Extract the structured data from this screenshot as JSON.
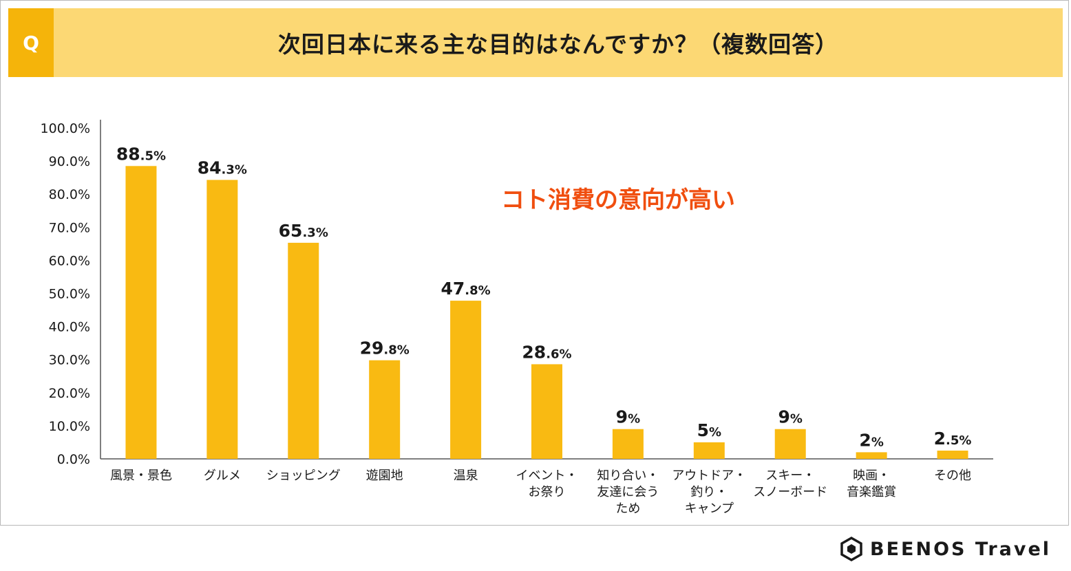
{
  "header": {
    "q_label": "Q",
    "title": "次回日本に来る主な目的はなんですか？（複数回答）"
  },
  "callout": "コト消費の意向が高い",
  "brand": {
    "name": "BEENOS Travel",
    "icon": "hexagon-logo-icon"
  },
  "colors": {
    "bar": "#f9ba12",
    "header_bg": "#fcd874",
    "q_bg": "#f5b40a",
    "callout": "#f04e0f",
    "axis": "#555555"
  },
  "chart_data": {
    "type": "bar",
    "title": "次回日本に来る主な目的はなんですか？（複数回答）",
    "xlabel": "",
    "ylabel": "",
    "ylim": [
      0,
      100
    ],
    "y_ticks": [
      "0.0%",
      "10.0%",
      "20.0%",
      "30.0%",
      "40.0%",
      "50.0%",
      "60.0%",
      "70.0%",
      "80.0%",
      "90.0%",
      "100.0%"
    ],
    "categories": [
      [
        "風景・景色"
      ],
      [
        "グルメ"
      ],
      [
        "ショッピング"
      ],
      [
        "遊園地"
      ],
      [
        "温泉"
      ],
      [
        "イベント・",
        "お祭り"
      ],
      [
        "知り合い・",
        "友達に会う",
        "ため"
      ],
      [
        "アウトドア・",
        "釣り・",
        "キャンプ"
      ],
      [
        "スキー・",
        "スノーボード"
      ],
      [
        "映画・",
        "音楽鑑賞"
      ],
      [
        "その他"
      ]
    ],
    "values": [
      88.5,
      84.3,
      65.3,
      29.8,
      47.8,
      28.6,
      9,
      5,
      9,
      2,
      2.5
    ],
    "value_labels": [
      [
        "88",
        ".5%"
      ],
      [
        "84",
        ".3%"
      ],
      [
        "65",
        ".3%"
      ],
      [
        "29",
        ".8%"
      ],
      [
        "47",
        ".8%"
      ],
      [
        "28",
        ".6%"
      ],
      [
        "9",
        "%"
      ],
      [
        "5",
        "%"
      ],
      [
        "9",
        "%"
      ],
      [
        "2",
        "%"
      ],
      [
        "2",
        ".5%"
      ]
    ],
    "grid": false,
    "legend": "none"
  }
}
